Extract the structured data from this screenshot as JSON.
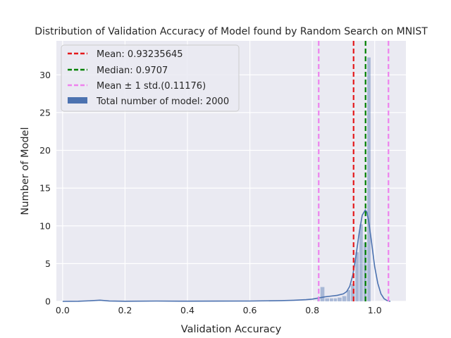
{
  "chart_data": {
    "type": "bar",
    "title": "Distribution of Validation Accuracy of Model found by Random Search on MNIST",
    "xlabel": "Validation Accuracy",
    "ylabel": "Number of Model",
    "xlim": [
      -0.02,
      1.1
    ],
    "ylim": [
      0,
      34.5
    ],
    "xticks": [
      0.0,
      0.2,
      0.4,
      0.6,
      0.8,
      1.0
    ],
    "xtick_labels": [
      "0.0",
      "0.2",
      "0.4",
      "0.6",
      "0.8",
      "1.0"
    ],
    "yticks": [
      0,
      5,
      10,
      15,
      20,
      25,
      30
    ],
    "ytick_labels": [
      "0",
      "5",
      "10",
      "15",
      "20",
      "25",
      "30"
    ],
    "grid": true,
    "legend_position": "top-left",
    "histogram": {
      "name": "Total number of model: 2000",
      "color": "#4c72b0",
      "bins": [
        {
          "x0": 0.815,
          "x1": 0.825,
          "y": 0.3
        },
        {
          "x0": 0.825,
          "x1": 0.84,
          "y": 1.9
        },
        {
          "x0": 0.84,
          "x1": 0.855,
          "y": 0.4
        },
        {
          "x0": 0.855,
          "x1": 0.868,
          "y": 0.4
        },
        {
          "x0": 0.868,
          "x1": 0.88,
          "y": 0.4
        },
        {
          "x0": 0.88,
          "x1": 0.895,
          "y": 0.5
        },
        {
          "x0": 0.895,
          "x1": 0.91,
          "y": 0.7
        },
        {
          "x0": 0.91,
          "x1": 0.923,
          "y": 1.5
        },
        {
          "x0": 0.923,
          "x1": 0.937,
          "y": 2.3
        },
        {
          "x0": 0.937,
          "x1": 0.95,
          "y": 6.5
        },
        {
          "x0": 0.95,
          "x1": 0.963,
          "y": 10.2
        },
        {
          "x0": 0.963,
          "x1": 0.975,
          "y": 7.8
        },
        {
          "x0": 0.975,
          "x1": 0.988,
          "y": 32.3
        }
      ]
    },
    "kde": {
      "color": "#4c72b0",
      "points": [
        [
          0.0,
          0.0
        ],
        [
          0.05,
          0.02
        ],
        [
          0.09,
          0.08
        ],
        [
          0.12,
          0.16
        ],
        [
          0.15,
          0.06
        ],
        [
          0.2,
          0.02
        ],
        [
          0.3,
          0.05
        ],
        [
          0.4,
          0.03
        ],
        [
          0.5,
          0.04
        ],
        [
          0.6,
          0.05
        ],
        [
          0.7,
          0.1
        ],
        [
          0.74,
          0.15
        ],
        [
          0.78,
          0.22
        ],
        [
          0.8,
          0.3
        ],
        [
          0.82,
          0.45
        ],
        [
          0.84,
          0.6
        ],
        [
          0.86,
          0.7
        ],
        [
          0.88,
          0.8
        ],
        [
          0.9,
          1.0
        ],
        [
          0.91,
          1.3
        ],
        [
          0.92,
          2.0
        ],
        [
          0.93,
          3.5
        ],
        [
          0.94,
          6.0
        ],
        [
          0.95,
          9.0
        ],
        [
          0.96,
          11.4
        ],
        [
          0.97,
          12.1
        ],
        [
          0.975,
          11.8
        ],
        [
          0.98,
          10.8
        ],
        [
          0.99,
          7.8
        ],
        [
          1.0,
          4.6
        ],
        [
          1.01,
          2.4
        ],
        [
          1.02,
          1.0
        ],
        [
          1.03,
          0.35
        ],
        [
          1.04,
          0.1
        ],
        [
          1.05,
          0.0
        ]
      ]
    },
    "vlines": [
      {
        "name": "Mean: 0.93235645",
        "x": 0.93235645,
        "color": "#e41a1c"
      },
      {
        "name": "Median: 0.9707",
        "x": 0.9707,
        "color": "#008000"
      },
      {
        "name": "Mean ± 1 std.(0.11176)",
        "x": 0.82059645,
        "x2": 1.04411645,
        "color": "#ee82ee"
      }
    ]
  }
}
